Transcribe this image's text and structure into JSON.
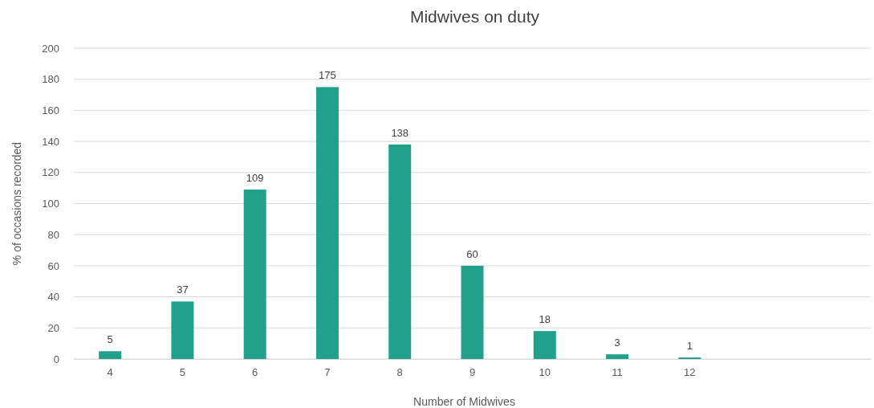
{
  "chart_data": {
    "type": "bar",
    "title": "Midwives on duty",
    "xlabel": "Number of Midwives",
    "ylabel": "% of occasions recorded",
    "categories": [
      "4",
      "5",
      "6",
      "7",
      "8",
      "9",
      "10",
      "11",
      "12",
      null,
      null
    ],
    "values": [
      5,
      37,
      109,
      175,
      138,
      60,
      18,
      3,
      1,
      null,
      null
    ],
    "color": "#21a08c",
    "ylim": [
      0,
      200
    ],
    "yticks": [
      0,
      20,
      40,
      60,
      80,
      100,
      120,
      140,
      160,
      180,
      200
    ],
    "grid": "y",
    "data_labels": true
  }
}
